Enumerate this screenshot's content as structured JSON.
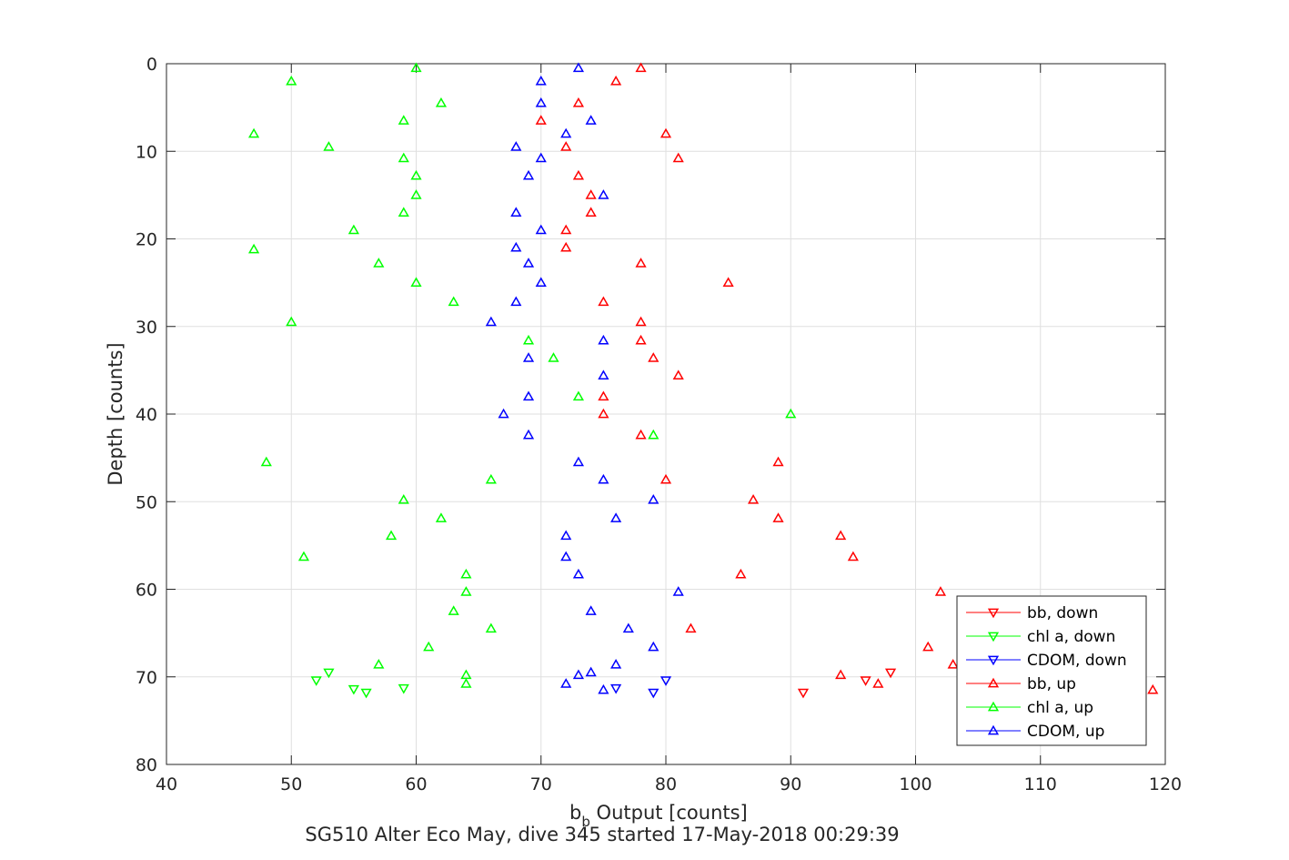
{
  "chart_data": {
    "type": "scatter",
    "xlabel_main": "b",
    "xlabel_sub": "b",
    "xlabel_rest": " Output [counts]",
    "ylabel": "Depth [counts]",
    "footer": "SG510 Alter Eco May, dive 345 started 17-May-2018 00:29:39",
    "xlim": [
      40,
      120
    ],
    "ylim": [
      0,
      80
    ],
    "y_reversed": true,
    "grid": true,
    "legend_position": "bottom-right",
    "x_ticks": [
      40,
      50,
      60,
      70,
      80,
      90,
      100,
      110,
      120
    ],
    "y_ticks": [
      0,
      10,
      20,
      30,
      40,
      50,
      60,
      70,
      80
    ],
    "series": [
      {
        "name": "bb, down",
        "color": "#ff0000",
        "marker": "down",
        "points": [
          [
            91,
            71.8
          ],
          [
            96,
            70.4
          ],
          [
            98,
            69.5
          ]
        ]
      },
      {
        "name": "chl a, down",
        "color": "#00ff00",
        "marker": "down",
        "points": [
          [
            52,
            70.4
          ],
          [
            53,
            69.5
          ],
          [
            55,
            71.4
          ],
          [
            56,
            71.8
          ],
          [
            59,
            71.3
          ]
        ]
      },
      {
        "name": "CDOM, down",
        "color": "#0000ff",
        "marker": "down",
        "points": [
          [
            76,
            71.3
          ],
          [
            79,
            71.8
          ],
          [
            80,
            70.4
          ]
        ]
      },
      {
        "name": "bb, up",
        "color": "#ff0000",
        "marker": "up",
        "points": [
          [
            78,
            0.5
          ],
          [
            76,
            2
          ],
          [
            73,
            4.5
          ],
          [
            70,
            6.5
          ],
          [
            80,
            8
          ],
          [
            72,
            9.5
          ],
          [
            81,
            10.8
          ],
          [
            73,
            12.8
          ],
          [
            74,
            15
          ],
          [
            74,
            17
          ],
          [
            72,
            19
          ],
          [
            72,
            21
          ],
          [
            78,
            22.8
          ],
          [
            85,
            25
          ],
          [
            75,
            27.2
          ],
          [
            78,
            29.5
          ],
          [
            78,
            31.6
          ],
          [
            79,
            33.6
          ],
          [
            81,
            35.6
          ],
          [
            75,
            38
          ],
          [
            75,
            40
          ],
          [
            78,
            42.4
          ],
          [
            89,
            45.5
          ],
          [
            80,
            47.5
          ],
          [
            87,
            49.8
          ],
          [
            89,
            51.9
          ],
          [
            94,
            53.9
          ],
          [
            95,
            56.3
          ],
          [
            86,
            58.3
          ],
          [
            102,
            60.3
          ],
          [
            82,
            64.5
          ],
          [
            101,
            66.6
          ],
          [
            103,
            68.6
          ],
          [
            94,
            69.8
          ],
          [
            97,
            70.8
          ],
          [
            119,
            71.5
          ]
        ]
      },
      {
        "name": "chl a, up",
        "color": "#00ff00",
        "marker": "up",
        "points": [
          [
            60,
            0.5
          ],
          [
            50,
            2
          ],
          [
            62,
            4.5
          ],
          [
            59,
            6.5
          ],
          [
            47,
            8
          ],
          [
            53,
            9.5
          ],
          [
            59,
            10.8
          ],
          [
            60,
            12.8
          ],
          [
            60,
            15
          ],
          [
            59,
            17
          ],
          [
            55,
            19
          ],
          [
            47,
            21.2
          ],
          [
            57,
            22.8
          ],
          [
            60,
            25
          ],
          [
            63,
            27.2
          ],
          [
            50,
            29.5
          ],
          [
            69,
            31.6
          ],
          [
            71,
            33.6
          ],
          [
            73,
            38
          ],
          [
            90,
            40
          ],
          [
            79,
            42.4
          ],
          [
            48,
            45.5
          ],
          [
            66,
            47.5
          ],
          [
            59,
            49.8
          ],
          [
            62,
            51.9
          ],
          [
            58,
            53.9
          ],
          [
            51,
            56.3
          ],
          [
            64,
            58.3
          ],
          [
            64,
            60.3
          ],
          [
            63,
            62.5
          ],
          [
            66,
            64.5
          ],
          [
            61,
            66.6
          ],
          [
            57,
            68.6
          ],
          [
            64,
            69.8
          ],
          [
            64,
            70.8
          ]
        ]
      },
      {
        "name": "CDOM, up",
        "color": "#0000ff",
        "marker": "up",
        "points": [
          [
            73,
            0.5
          ],
          [
            70,
            2
          ],
          [
            70,
            4.5
          ],
          [
            74,
            6.5
          ],
          [
            72,
            8
          ],
          [
            68,
            9.5
          ],
          [
            70,
            10.8
          ],
          [
            69,
            12.8
          ],
          [
            75,
            15
          ],
          [
            68,
            17
          ],
          [
            70,
            19
          ],
          [
            68,
            21
          ],
          [
            69,
            22.8
          ],
          [
            70,
            25
          ],
          [
            68,
            27.2
          ],
          [
            66,
            29.5
          ],
          [
            75,
            31.6
          ],
          [
            69,
            33.6
          ],
          [
            75,
            35.6
          ],
          [
            69,
            38
          ],
          [
            67,
            40
          ],
          [
            69,
            42.4
          ],
          [
            73,
            45.5
          ],
          [
            75,
            47.5
          ],
          [
            79,
            49.8
          ],
          [
            76,
            51.9
          ],
          [
            72,
            53.9
          ],
          [
            72,
            56.3
          ],
          [
            73,
            58.3
          ],
          [
            81,
            60.3
          ],
          [
            74,
            62.5
          ],
          [
            77,
            64.5
          ],
          [
            79,
            66.6
          ],
          [
            76,
            68.6
          ],
          [
            73,
            69.8
          ],
          [
            74,
            69.5
          ],
          [
            72,
            70.8
          ],
          [
            75,
            71.5
          ]
        ]
      }
    ]
  }
}
